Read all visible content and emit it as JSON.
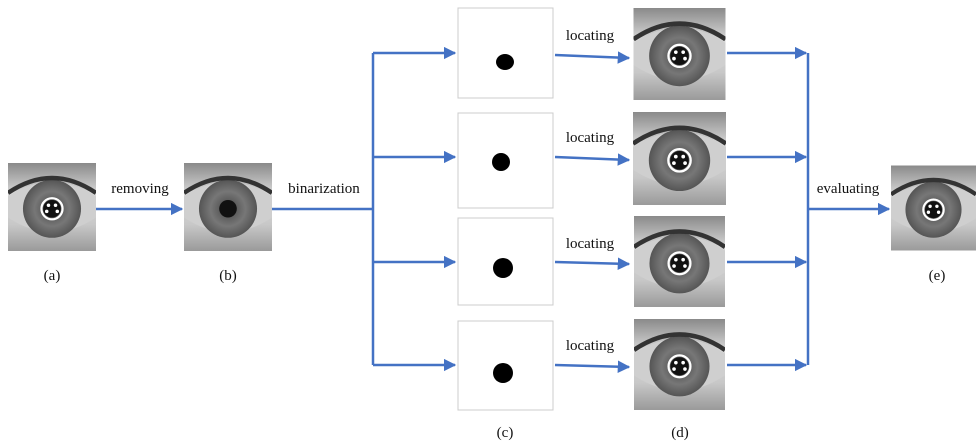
{
  "operations": [
    "removing",
    "binarization",
    "locating",
    "locating",
    "locating",
    "locating",
    "evaluating"
  ],
  "stage_labels": [
    "(a)",
    "(b)",
    "(c)",
    "(d)",
    "(e)"
  ]
}
